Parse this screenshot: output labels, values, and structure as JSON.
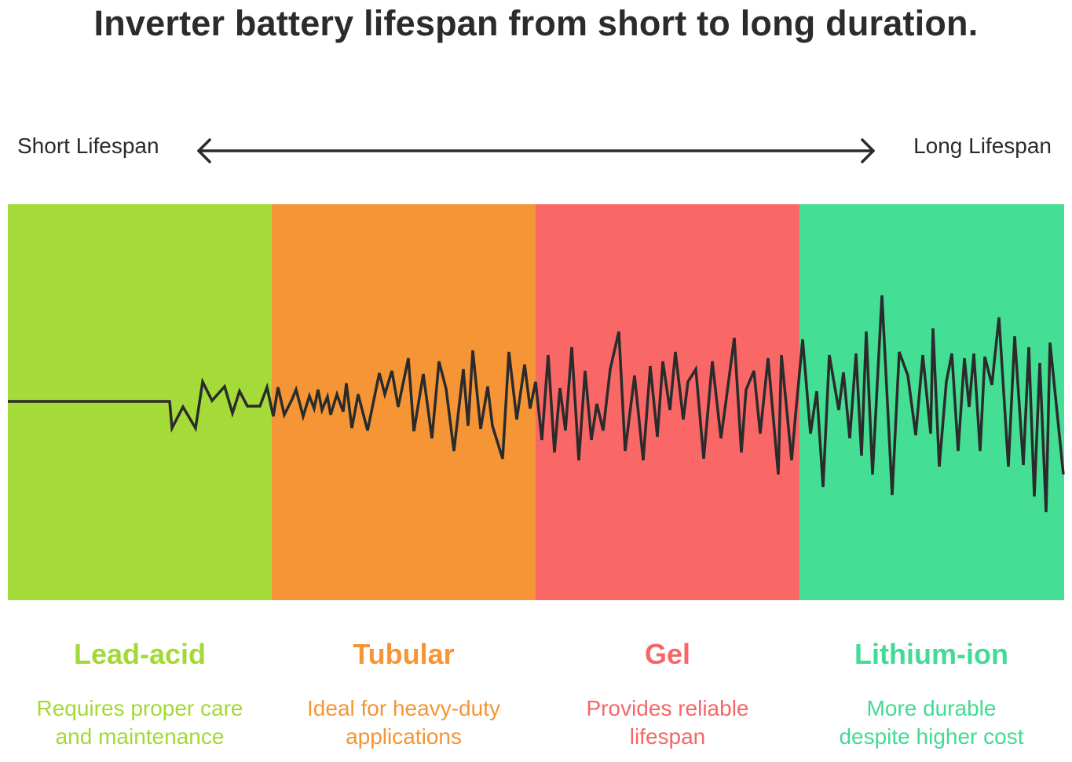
{
  "title": "Inverter battery lifespan from short to long duration.",
  "axis": {
    "left_label": "Short Lifespan",
    "right_label": "Long Lifespan"
  },
  "categories": [
    {
      "name": "Lead-acid",
      "desc_line1": "Requires proper care",
      "desc_line2": "and maintenance",
      "color": "#a5db38"
    },
    {
      "name": "Tubular",
      "desc_line1": "Ideal for heavy-duty",
      "desc_line2": "applications",
      "color": "#f59535"
    },
    {
      "name": "Gel",
      "desc_line1": "Provides reliable",
      "desc_line2": "lifespan",
      "color": "#f96767"
    },
    {
      "name": "Lithium-ion",
      "desc_line1": "More durable",
      "desc_line2": "despite higher cost",
      "color": "#44de95"
    }
  ],
  "colors": {
    "text": "#2b2b2b",
    "line": "#2b2b2b"
  }
}
